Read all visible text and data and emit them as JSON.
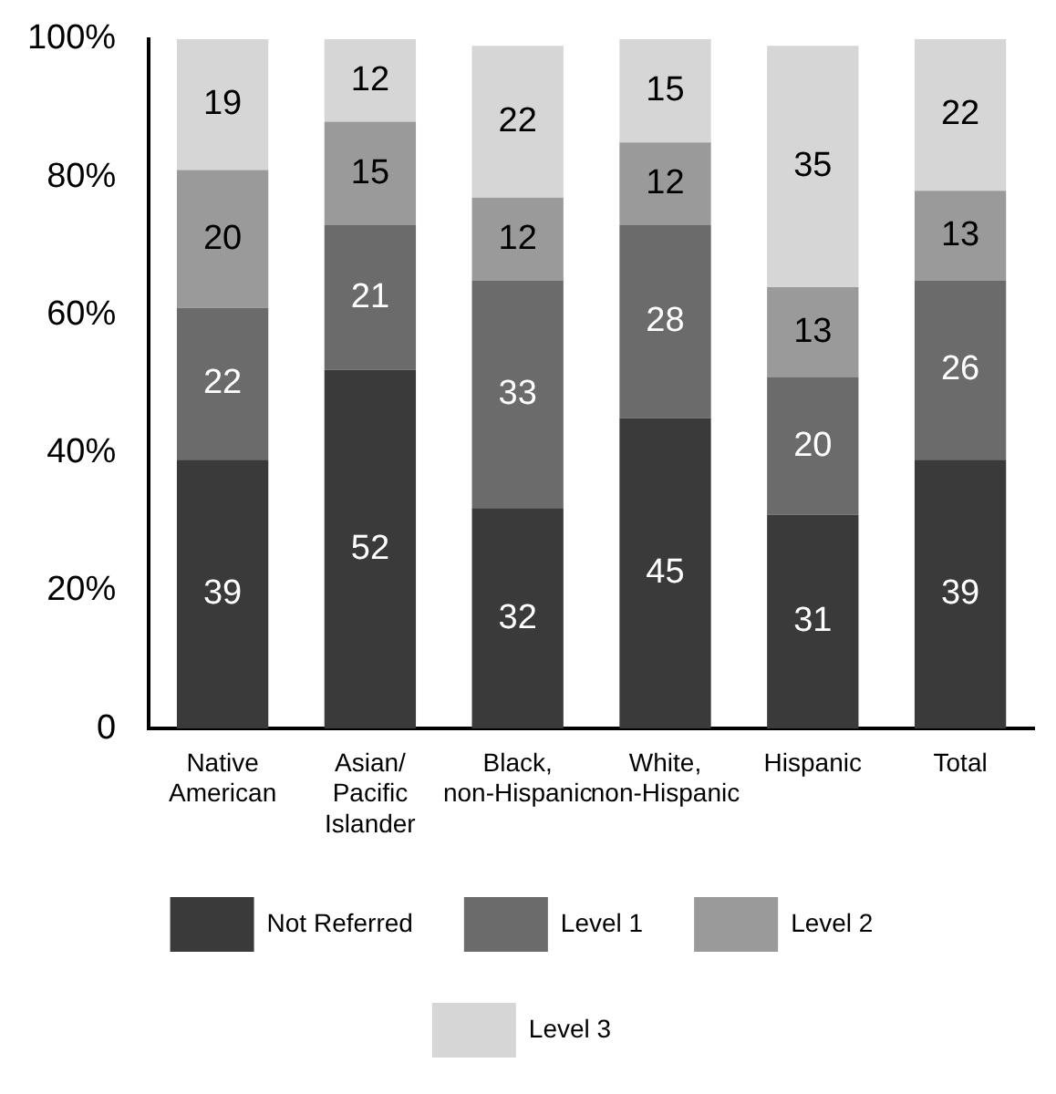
{
  "chart_data": {
    "type": "bar",
    "stacked": true,
    "data_labels": true,
    "grid": false,
    "legend": "bottom",
    "categories": [
      "Native American",
      "Asian/ Pacific Islander",
      "Black, non-Hispanic",
      "White, non-Hispanic",
      "Hispanic",
      "Total"
    ],
    "series": [
      {
        "name": "Not Referred",
        "color": "#3a3a3a",
        "values": [
          39,
          52,
          32,
          45,
          31,
          39
        ]
      },
      {
        "name": "Level 1",
        "color": "#6b6b6b",
        "values": [
          22,
          21,
          33,
          28,
          20,
          26
        ]
      },
      {
        "name": "Level 2",
        "color": "#9a9a9a",
        "values": [
          20,
          15,
          12,
          12,
          13,
          13
        ]
      },
      {
        "name": "Level 3",
        "color": "#d6d6d6",
        "values": [
          19,
          12,
          22,
          15,
          35,
          22
        ]
      }
    ],
    "ylim": [
      0,
      100
    ],
    "yticks": [
      {
        "value": 0,
        "label": "0"
      },
      {
        "value": 20,
        "label": "20%"
      },
      {
        "value": 40,
        "label": "40%"
      },
      {
        "value": 60,
        "label": "60%"
      },
      {
        "value": 80,
        "label": "80%"
      },
      {
        "value": 100,
        "label": "100%"
      }
    ]
  }
}
